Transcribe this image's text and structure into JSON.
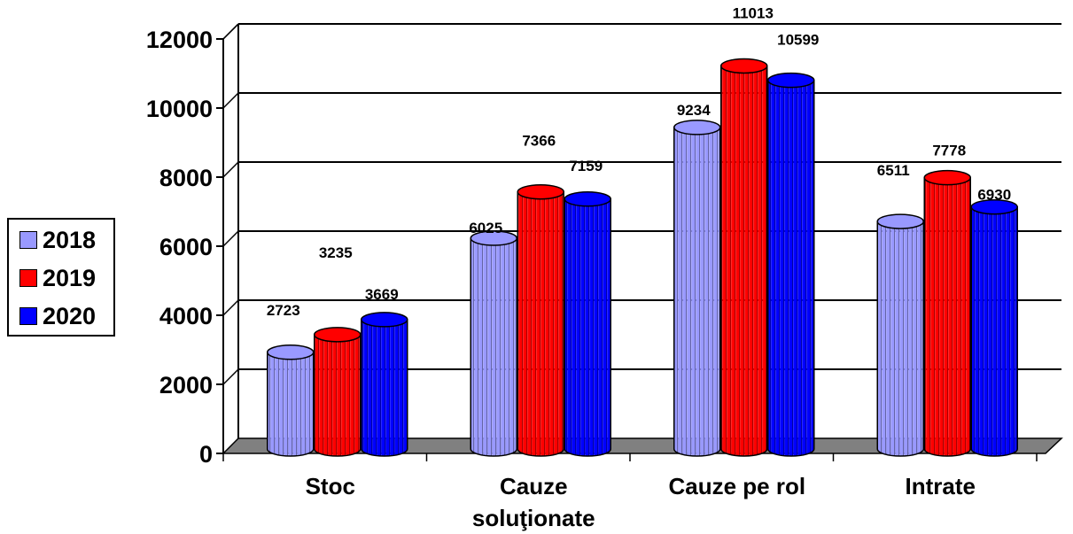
{
  "chart_data": {
    "type": "bar",
    "categories": [
      "Stoc",
      "Cauze\nsoluţionate",
      "Cauze pe rol",
      "Intrate"
    ],
    "series": [
      {
        "name": "2018",
        "color": "#9999ff",
        "values": [
          2723,
          6025,
          9234,
          6511
        ]
      },
      {
        "name": "2019",
        "color": "#ff0000",
        "values": [
          3235,
          7366,
          11013,
          7778
        ]
      },
      {
        "name": "2020",
        "color": "#0000ff",
        "values": [
          3669,
          7159,
          10599,
          6930
        ]
      }
    ],
    "ylim": [
      0,
      12000
    ],
    "yticks": [
      0,
      2000,
      4000,
      6000,
      8000,
      10000,
      12000
    ],
    "grid": true,
    "legend_position": "left",
    "style": "3d-cylinder"
  }
}
